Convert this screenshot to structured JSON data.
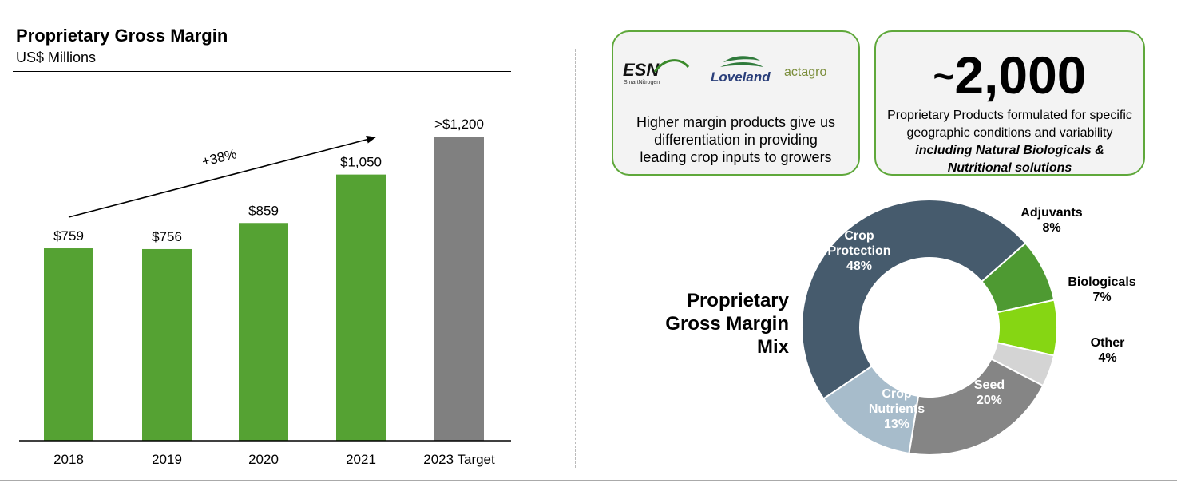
{
  "bar_chart": {
    "title": "Proprietary Gross Margin",
    "subtitle": "US$ Millions",
    "growth_label": "+38%"
  },
  "callouts": {
    "logos": [
      "ESN SmartNitrogen",
      "Loveland",
      "actagro"
    ],
    "logo_text": {
      "esn": "ESN",
      "esn_sub": "SmartNitrogen",
      "loveland": "Loveland",
      "actagro": "actagro"
    },
    "left_text": "Higher margin products give us differentiation in providing leading crop inputs to growers",
    "big_number_tilde": "~",
    "big_number": "2,000",
    "right_text_plain": "Proprietary Products formulated for specific geographic conditions and variability ",
    "right_text_emphasis": "including Natural Biologicals & Nutritional solutions"
  },
  "mix": {
    "title_lines": [
      "Proprietary",
      "Gross Margin",
      "Mix"
    ]
  },
  "colors": {
    "bar_green": "#55a233",
    "bar_gray": "#808080",
    "crop_protection": "#465b6d",
    "adjuvants": "#4e9a32",
    "biologicals": "#86d613",
    "other": "#d4d4d4",
    "seed": "#858585",
    "crop_nutrients": "#a7bccb",
    "callout_border": "#5fa83b"
  },
  "chart_data": [
    {
      "type": "bar",
      "title": "Proprietary Gross Margin",
      "ylabel": "US$ Millions",
      "categories": [
        "2018",
        "2019",
        "2020",
        "2021",
        "2023 Target"
      ],
      "values": [
        759,
        756,
        859,
        1050,
        1200
      ],
      "data_labels": [
        "$759",
        "$756",
        "$859",
        "$1,050",
        ">$1,200"
      ],
      "bar_colors": [
        "#55a233",
        "#55a233",
        "#55a233",
        "#55a233",
        "#808080"
      ],
      "ylim": [
        0,
        1300
      ],
      "grid": false,
      "annotation": "+38%"
    },
    {
      "type": "pie",
      "donut": true,
      "title": "Proprietary Gross Margin Mix",
      "slices": [
        {
          "label": "Crop Protection",
          "value": 48,
          "display": "48%",
          "color": "#465b6d"
        },
        {
          "label": "Adjuvants",
          "value": 8,
          "display": "8%",
          "color": "#4e9a32"
        },
        {
          "label": "Biologicals",
          "value": 7,
          "display": "7%",
          "color": "#86d613"
        },
        {
          "label": "Other",
          "value": 4,
          "display": "4%",
          "color": "#d4d4d4"
        },
        {
          "label": "Seed",
          "value": 20,
          "display": "20%",
          "color": "#858585"
        },
        {
          "label": "Crop Nutrients",
          "value": 13,
          "display": "13%",
          "color": "#a7bccb"
        }
      ]
    }
  ]
}
